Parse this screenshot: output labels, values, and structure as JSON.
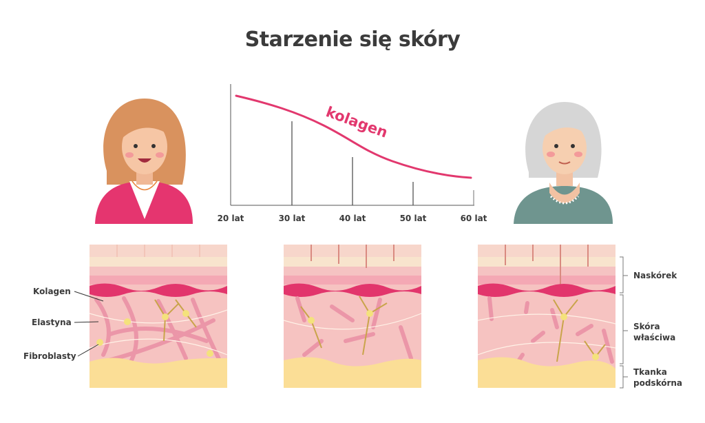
{
  "title": "Starzenie się skóry",
  "chart": {
    "curve_label": "kolagen",
    "x_ticks": [
      "20 lat",
      "30 lat",
      "40 lat",
      "50 lat",
      "60 lat"
    ],
    "curve_color": "#e2386e"
  },
  "skin_labels_left": [
    "Kolagen",
    "Elastyna",
    "Fibroblasty"
  ],
  "skin_layers_right": [
    {
      "line1": "Naskórek",
      "line2": ""
    },
    {
      "line1": "Skóra",
      "line2": "właściwa"
    },
    {
      "line1": "Tkanka",
      "line2": "podskórna"
    }
  ],
  "colors": {
    "accent": "#e2386e",
    "dermis": "#f6c3c1",
    "fat": "#fbde96",
    "epidermis": "#f7d6cb"
  }
}
